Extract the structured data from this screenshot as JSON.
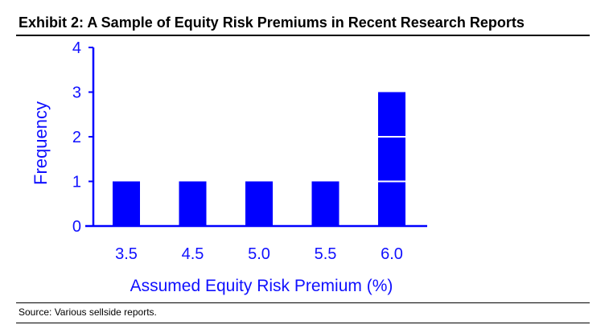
{
  "header": {
    "title": "Exhibit 2: A Sample of Equity Risk Premiums in Recent Research Reports"
  },
  "footer": {
    "source": "Source: Various sellside reports."
  },
  "colors": {
    "accent": "#0000ff",
    "text": "#000000"
  },
  "chart_data": {
    "type": "bar",
    "title": "",
    "xlabel": "Assumed Equity Risk Premium (%)",
    "ylabel": "Frequency",
    "categories": [
      "3.5",
      "4.5",
      "5.0",
      "5.5",
      "6.0"
    ],
    "values": [
      1,
      1,
      1,
      1,
      3
    ],
    "ylim": [
      0,
      4
    ],
    "yticks": [
      "0",
      "1",
      "2",
      "3",
      "4"
    ],
    "stacked_unit_segments": true,
    "grid": false,
    "legend": "none"
  }
}
